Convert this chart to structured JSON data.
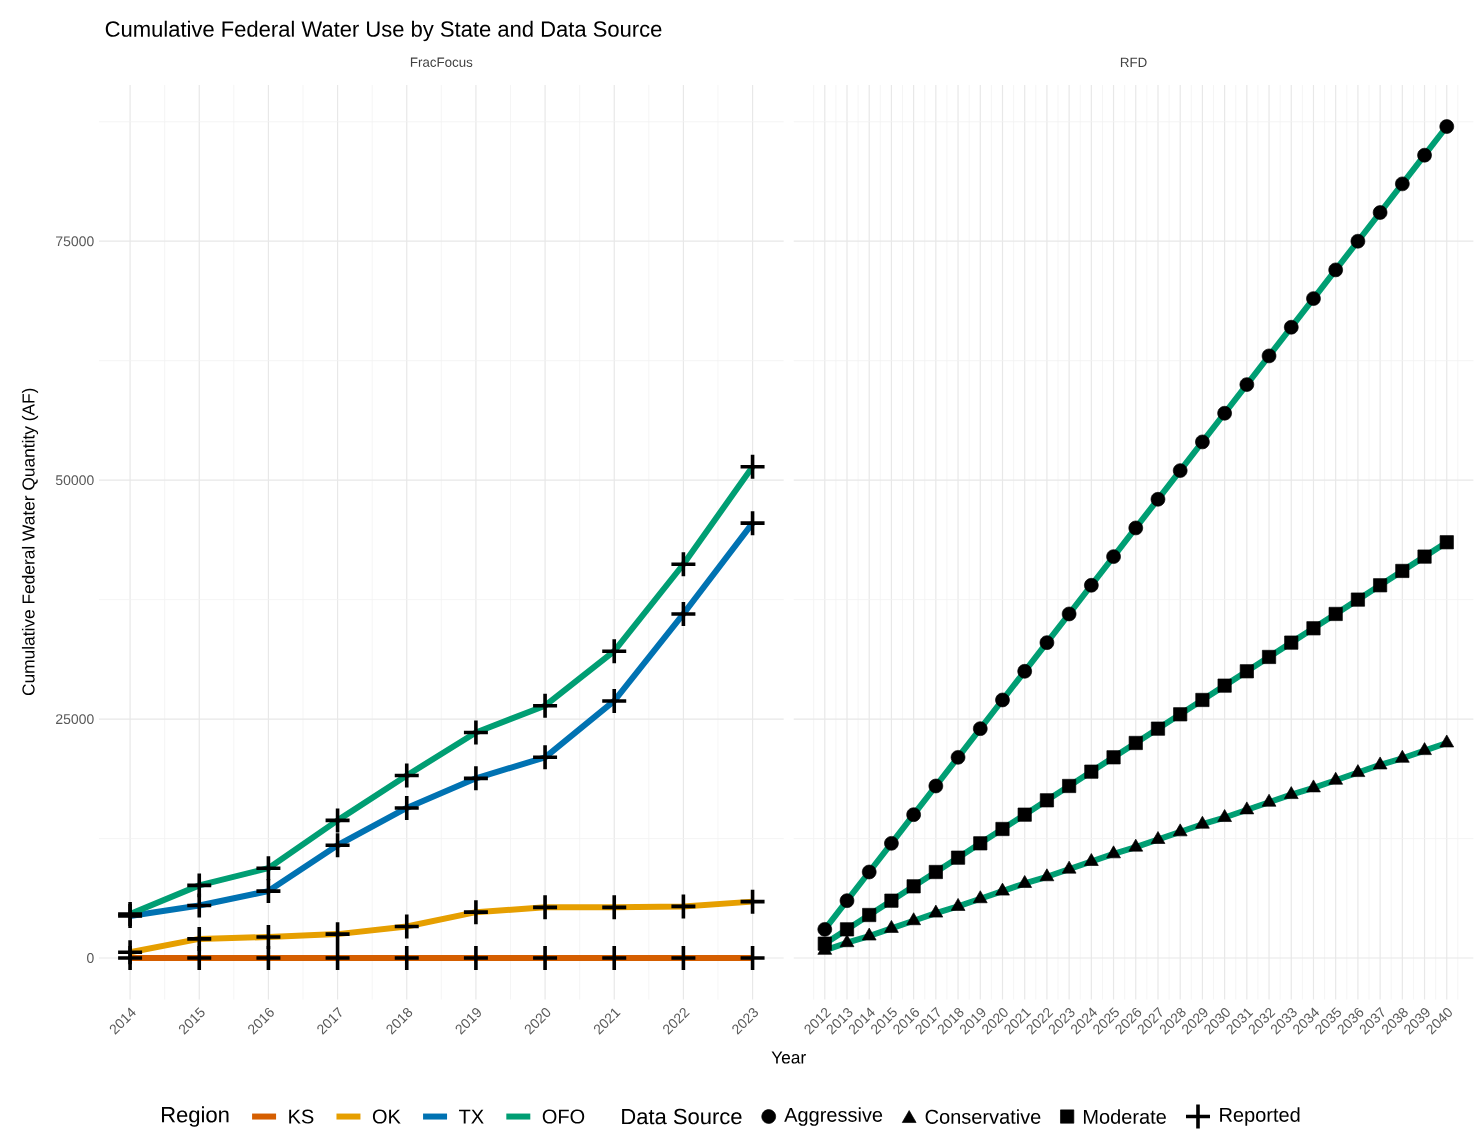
{
  "chart_data": [
    {
      "type": "line",
      "title": "Cumulative Federal Water Use by State and Data Source",
      "subtitle": "FracFocus",
      "xlabel": "Year",
      "ylabel": "Cumulative  Federal Water Quantity (AF)",
      "legend_title": "Region",
      "legend": "bottom",
      "grid": true,
      "marker": "cross",
      "annotations": [
        "Reported"
      ],
      "x": [
        2014,
        2015,
        2016,
        2017,
        2018,
        2019,
        2020,
        2021,
        2022,
        2023
      ],
      "xlim": [
        2013.55,
        2023.45
      ],
      "xticks": [
        2014,
        2015,
        2016,
        2017,
        2018,
        2019,
        2020,
        2021,
        2022,
        2023
      ],
      "ylim": [
        -4350,
        91350
      ],
      "yticks": [
        0,
        25000,
        50000,
        75000
      ],
      "series": [
        {
          "name": "KS",
          "color": "#d55e00",
          "values": [
            0,
            0,
            0,
            0,
            0,
            0,
            0,
            0,
            0,
            0
          ]
        },
        {
          "name": "OK",
          "color": "#e69f00",
          "values": [
            600,
            2000,
            2200,
            2500,
            3300,
            4800,
            5300,
            5300,
            5400,
            5900
          ]
        },
        {
          "name": "TX",
          "color": "#0072b2",
          "values": [
            4400,
            5500,
            7000,
            11800,
            15700,
            18800,
            21000,
            26900,
            36000,
            45500
          ]
        },
        {
          "name": "OFO",
          "color": "#009e73",
          "values": [
            4600,
            7600,
            9400,
            14400,
            19100,
            23600,
            26400,
            32100,
            41200,
            51400
          ]
        }
      ]
    },
    {
      "type": "line",
      "subtitle": "RFD",
      "legend_title": "Data Source",
      "legend": "bottom",
      "grid": true,
      "tick_labels": "x",
      "x": [
        2012,
        2013,
        2014,
        2015,
        2016,
        2017,
        2018,
        2019,
        2020,
        2021,
        2022,
        2023,
        2024,
        2025,
        2026,
        2027,
        2028,
        2029,
        2030,
        2031,
        2032,
        2033,
        2034,
        2035,
        2036,
        2037,
        2038,
        2039,
        2040
      ],
      "xlim": [
        2010.6,
        2041.2
      ],
      "xticks": [
        2012,
        2013,
        2014,
        2015,
        2016,
        2017,
        2018,
        2019,
        2020,
        2021,
        2022,
        2023,
        2024,
        2025,
        2026,
        2027,
        2028,
        2029,
        2030,
        2031,
        2032,
        2033,
        2034,
        2035,
        2036,
        2037,
        2038,
        2039,
        2040
      ],
      "ylim": [
        -4350,
        91350
      ],
      "yticks": [
        0,
        25000,
        50000,
        75000
      ],
      "series": [
        {
          "name": "Aggressive",
          "color": "#009e73",
          "marker": "circle",
          "values": [
            3000,
            6000,
            9000,
            12000,
            15000,
            18000,
            21000,
            24000,
            27000,
            30000,
            33000,
            36000,
            39000,
            42000,
            45000,
            48000,
            51000,
            54000,
            57000,
            60000,
            63000,
            66000,
            69000,
            72000,
            75000,
            78000,
            81000,
            84000,
            87000
          ]
        },
        {
          "name": "Conservative",
          "color": "#009e73",
          "marker": "triangle",
          "values": [
            800,
            1600,
            2300,
            3100,
            3900,
            4700,
            5400,
            6200,
            7000,
            7800,
            8500,
            9300,
            10100,
            10900,
            11600,
            12400,
            13200,
            14000,
            14700,
            15500,
            16300,
            17100,
            17800,
            18600,
            19400,
            20200,
            20900,
            21700,
            22500
          ]
        },
        {
          "name": "Moderate",
          "color": "#009e73",
          "marker": "square",
          "values": [
            1500,
            3000,
            4500,
            6000,
            7500,
            9000,
            10500,
            12000,
            13500,
            15000,
            16500,
            18000,
            19500,
            21000,
            22500,
            24000,
            25500,
            27000,
            28500,
            30000,
            31500,
            33000,
            34500,
            36000,
            37500,
            39000,
            40500,
            42000,
            43500
          ]
        }
      ]
    }
  ]
}
